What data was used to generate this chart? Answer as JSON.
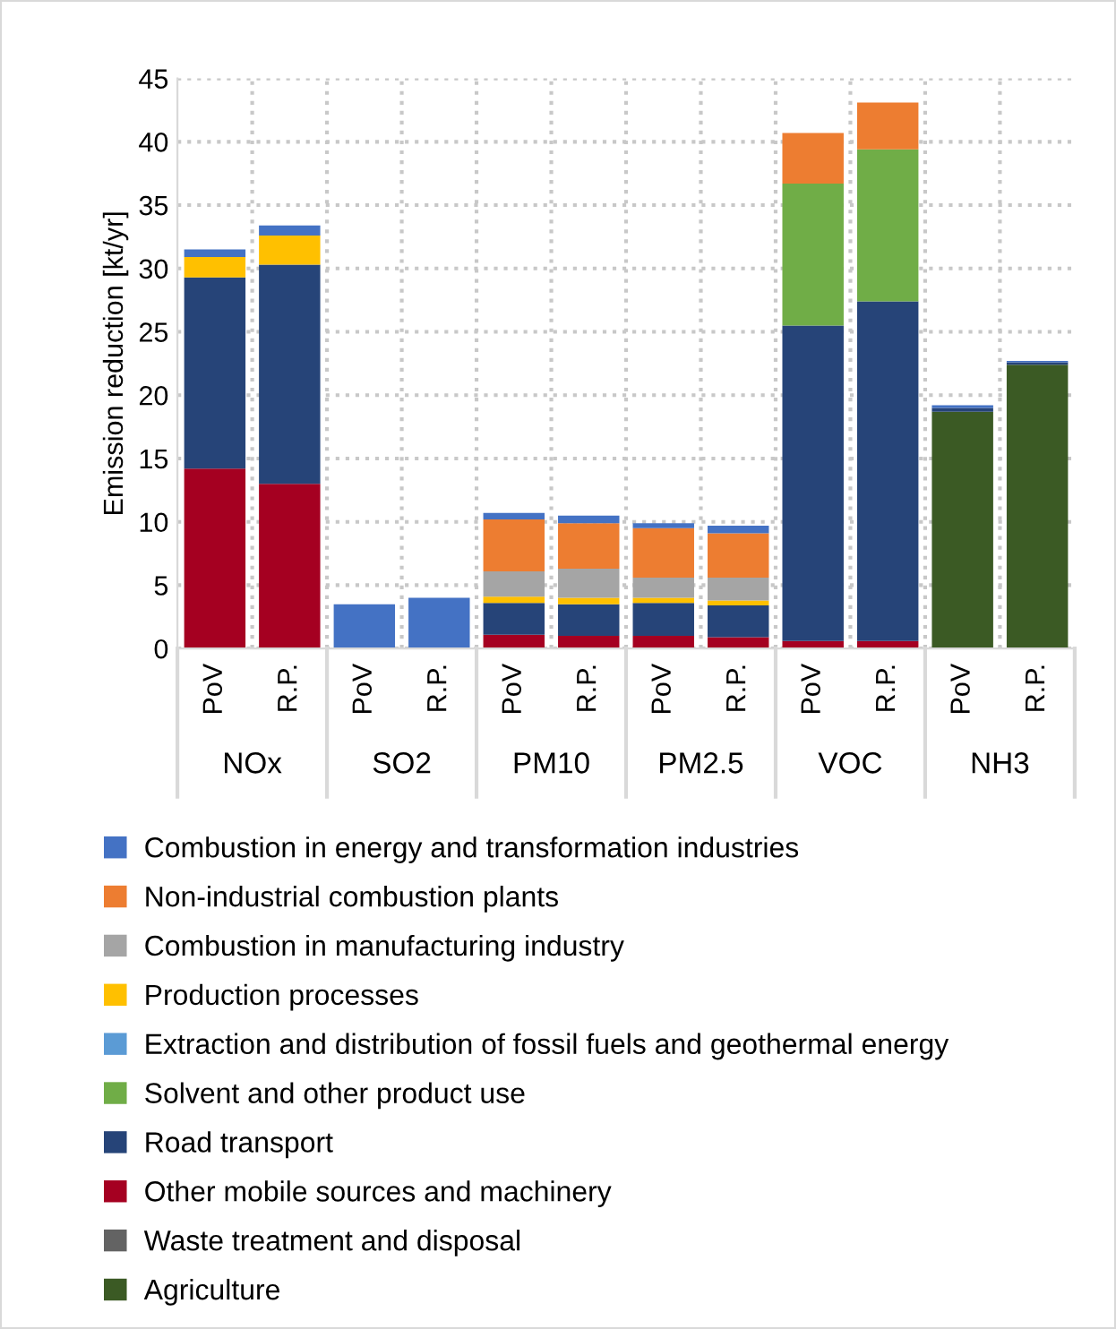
{
  "chart_data": {
    "type": "bar",
    "stacked": true,
    "ylabel": "Emission reduction [kt/yr]",
    "categories": [
      "PoV",
      "R.P.",
      "PoV",
      "R.P.",
      "PoV",
      "R.P.",
      "PoV",
      "R.P.",
      "PoV",
      "R.P.",
      "PoV",
      "R.P."
    ],
    "annotations": [
      "NOx",
      "SO2",
      "PM10",
      "PM2.5",
      "VOC",
      "NH3"
    ],
    "series": [
      {
        "name": "Agriculture",
        "color": "#3b5a24",
        "values": [
          null,
          null,
          null,
          null,
          null,
          null,
          null,
          null,
          null,
          null,
          18.7,
          22.4
        ]
      },
      {
        "name": "Waste treatment and disposal",
        "color": "#636363",
        "values": [
          null,
          null,
          null,
          null,
          null,
          null,
          null,
          null,
          null,
          null,
          null,
          null
        ]
      },
      {
        "name": "Other mobile sources and machinery",
        "color": "#a50021",
        "values": [
          14.2,
          13.0,
          null,
          null,
          1.1,
          1.0,
          1.0,
          0.9,
          0.6,
          0.6,
          null,
          null
        ]
      },
      {
        "name": "Road transport",
        "color": "#264478",
        "values": [
          15.1,
          17.3,
          null,
          null,
          2.5,
          2.5,
          2.6,
          2.5,
          24.9,
          26.8,
          0.3,
          0.2
        ]
      },
      {
        "name": "Solvent and other product use",
        "color": "#70ad47",
        "values": [
          null,
          null,
          null,
          null,
          null,
          null,
          null,
          null,
          11.2,
          12.0,
          null,
          null
        ]
      },
      {
        "name": "Extraction and distribution of fossil fuels and geothermal energy",
        "color": "#5b9bd5",
        "values": [
          null,
          null,
          null,
          null,
          null,
          null,
          null,
          null,
          null,
          null,
          null,
          null
        ]
      },
      {
        "name": "Production processes",
        "color": "#ffc000",
        "values": [
          1.6,
          2.3,
          null,
          null,
          0.5,
          0.5,
          0.4,
          0.4,
          null,
          null,
          null,
          null
        ]
      },
      {
        "name": "Combustion in manufacturing industry",
        "color": "#a5a5a5",
        "values": [
          null,
          null,
          null,
          null,
          2.0,
          2.3,
          1.6,
          1.8,
          null,
          null,
          null,
          null
        ]
      },
      {
        "name": "Non-industrial combustion plants",
        "color": "#ed7d31",
        "values": [
          null,
          null,
          null,
          null,
          4.1,
          3.6,
          3.9,
          3.5,
          4.0,
          3.7,
          null,
          null
        ]
      },
      {
        "name": "Combustion in energy and transformation industries",
        "color": "#4472c4",
        "values": [
          0.6,
          0.8,
          3.5,
          4.0,
          0.5,
          0.6,
          0.4,
          0.6,
          null,
          null,
          0.2,
          0.1
        ]
      }
    ],
    "ylim": [
      0,
      45
    ],
    "yticks": [
      0,
      5,
      10,
      15,
      20,
      25,
      30,
      35,
      40,
      45
    ],
    "grid": true,
    "legend": "bottom"
  }
}
